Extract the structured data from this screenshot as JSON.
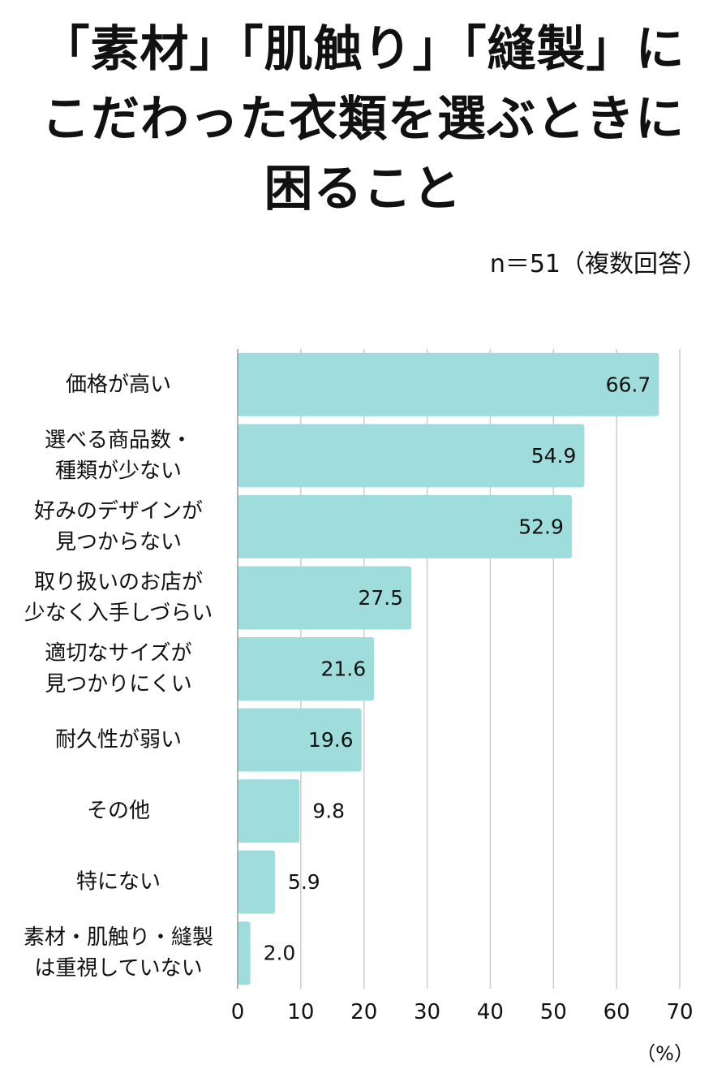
{
  "title": {
    "lines": [
      "「素材」「肌触り」「縫製」に",
      "こだわった衣類を選ぶときに",
      "困ること"
    ]
  },
  "sample_note": "n＝51（複数回答）",
  "unit_label": "（%）",
  "colors": {
    "bar": "#9fdcdc",
    "grid": "#cccccc",
    "axis": "#999999"
  },
  "chart_data": {
    "type": "bar",
    "orientation": "horizontal",
    "title": "「素材」「肌触り」「縫製」にこだわった衣類を選ぶときに困ること",
    "categories": [
      [
        "価格が高い"
      ],
      [
        "選べる商品数・",
        "種類が少ない"
      ],
      [
        "好みのデザインが",
        "見つからない"
      ],
      [
        "取り扱いのお店が",
        "少なく入手しづらい"
      ],
      [
        "適切なサイズが",
        "見つかりにくい"
      ],
      [
        "耐久性が弱い"
      ],
      [
        "その他"
      ],
      [
        "特にない"
      ],
      [
        "素材・肌触り・縫製",
        "は重視していない"
      ]
    ],
    "values": [
      66.7,
      54.9,
      52.9,
      27.5,
      21.6,
      19.6,
      9.8,
      5.9,
      2.0
    ],
    "value_labels": [
      "66.7",
      "54.9",
      "52.9",
      "27.5",
      "21.6",
      "19.6",
      "9.8",
      "5.9",
      "2.0"
    ],
    "xlim": [
      0,
      70
    ],
    "xticks": [
      0,
      10,
      20,
      30,
      40,
      50,
      60,
      70
    ],
    "xlabel": "（%）",
    "grid": true
  }
}
